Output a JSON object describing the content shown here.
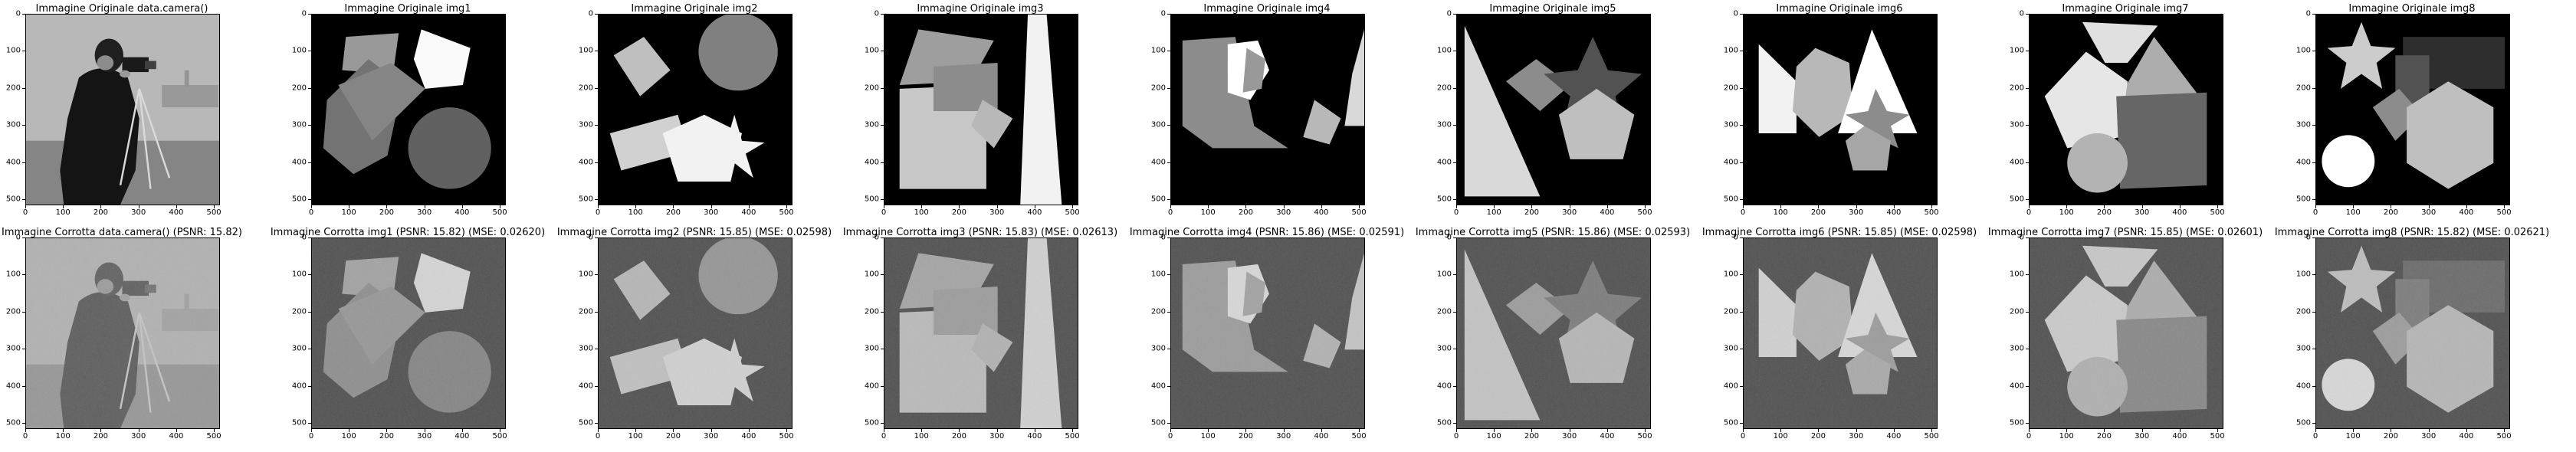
{
  "figure": {
    "rows": [
      {
        "panels": [
          {
            "id": "cam-orig",
            "title": "Immagine Originale data.camera()",
            "kind": "camera",
            "noise": false
          },
          {
            "id": "img1-orig",
            "title": "Immagine Originale img1",
            "kind": "img1",
            "noise": false
          },
          {
            "id": "img2-orig",
            "title": "Immagine Originale img2",
            "kind": "img2",
            "noise": false
          },
          {
            "id": "img3-orig",
            "title": "Immagine Originale img3",
            "kind": "img3",
            "noise": false
          },
          {
            "id": "img4-orig",
            "title": "Immagine Originale img4",
            "kind": "img4",
            "noise": false
          },
          {
            "id": "img5-orig",
            "title": "Immagine Originale img5",
            "kind": "img5",
            "noise": false
          },
          {
            "id": "img6-orig",
            "title": "Immagine Originale img6",
            "kind": "img6",
            "noise": false
          },
          {
            "id": "img7-orig",
            "title": "Immagine Originale img7",
            "kind": "img7",
            "noise": false
          },
          {
            "id": "img8-orig",
            "title": "Immagine Originale img8",
            "kind": "img8",
            "noise": false
          }
        ]
      },
      {
        "panels": [
          {
            "id": "cam-corr",
            "title": "Immagine Corrotta data.camera() (PSNR: 15.82)",
            "kind": "camera",
            "noise": true
          },
          {
            "id": "img1-corr",
            "title": "Immagine Corrotta img1 (PSNR: 15.82) (MSE: 0.02620)",
            "kind": "img1",
            "noise": true
          },
          {
            "id": "img2-corr",
            "title": "Immagine Corrotta img2 (PSNR: 15.85) (MSE: 0.02598)",
            "kind": "img2",
            "noise": true
          },
          {
            "id": "img3-corr",
            "title": "Immagine Corrotta img3 (PSNR: 15.83) (MSE: 0.02613)",
            "kind": "img3",
            "noise": true
          },
          {
            "id": "img4-corr",
            "title": "Immagine Corrotta img4 (PSNR: 15.86) (MSE: 0.02591)",
            "kind": "img4",
            "noise": true
          },
          {
            "id": "img5-corr",
            "title": "Immagine Corrotta img5 (PSNR: 15.86) (MSE: 0.02593)",
            "kind": "img5",
            "noise": true
          },
          {
            "id": "img6-corr",
            "title": "Immagine Corrotta img6 (PSNR: 15.85) (MSE: 0.02598)",
            "kind": "img6",
            "noise": true
          },
          {
            "id": "img7-corr",
            "title": "Immagine Corrotta img7 (PSNR: 15.85) (MSE: 0.02601)",
            "kind": "img7",
            "noise": true
          },
          {
            "id": "img8-corr",
            "title": "Immagine Corrotta img8 (PSNR: 15.82) (MSE: 0.02621)",
            "kind": "img8",
            "noise": true
          }
        ]
      }
    ],
    "x_ticks": [
      "0",
      "100",
      "200",
      "300",
      "400",
      "500"
    ],
    "y_ticks": [
      "0",
      "100",
      "200",
      "300",
      "400",
      "500"
    ],
    "x_tick_values": [
      0,
      100,
      200,
      300,
      400,
      500
    ],
    "y_tick_values": [
      0,
      100,
      200,
      300,
      400,
      500
    ],
    "axis_range": [
      0,
      512
    ],
    "colors": {
      "background": "#000000",
      "noisy_background": "#4a4a4a",
      "frame": "#000000"
    }
  }
}
